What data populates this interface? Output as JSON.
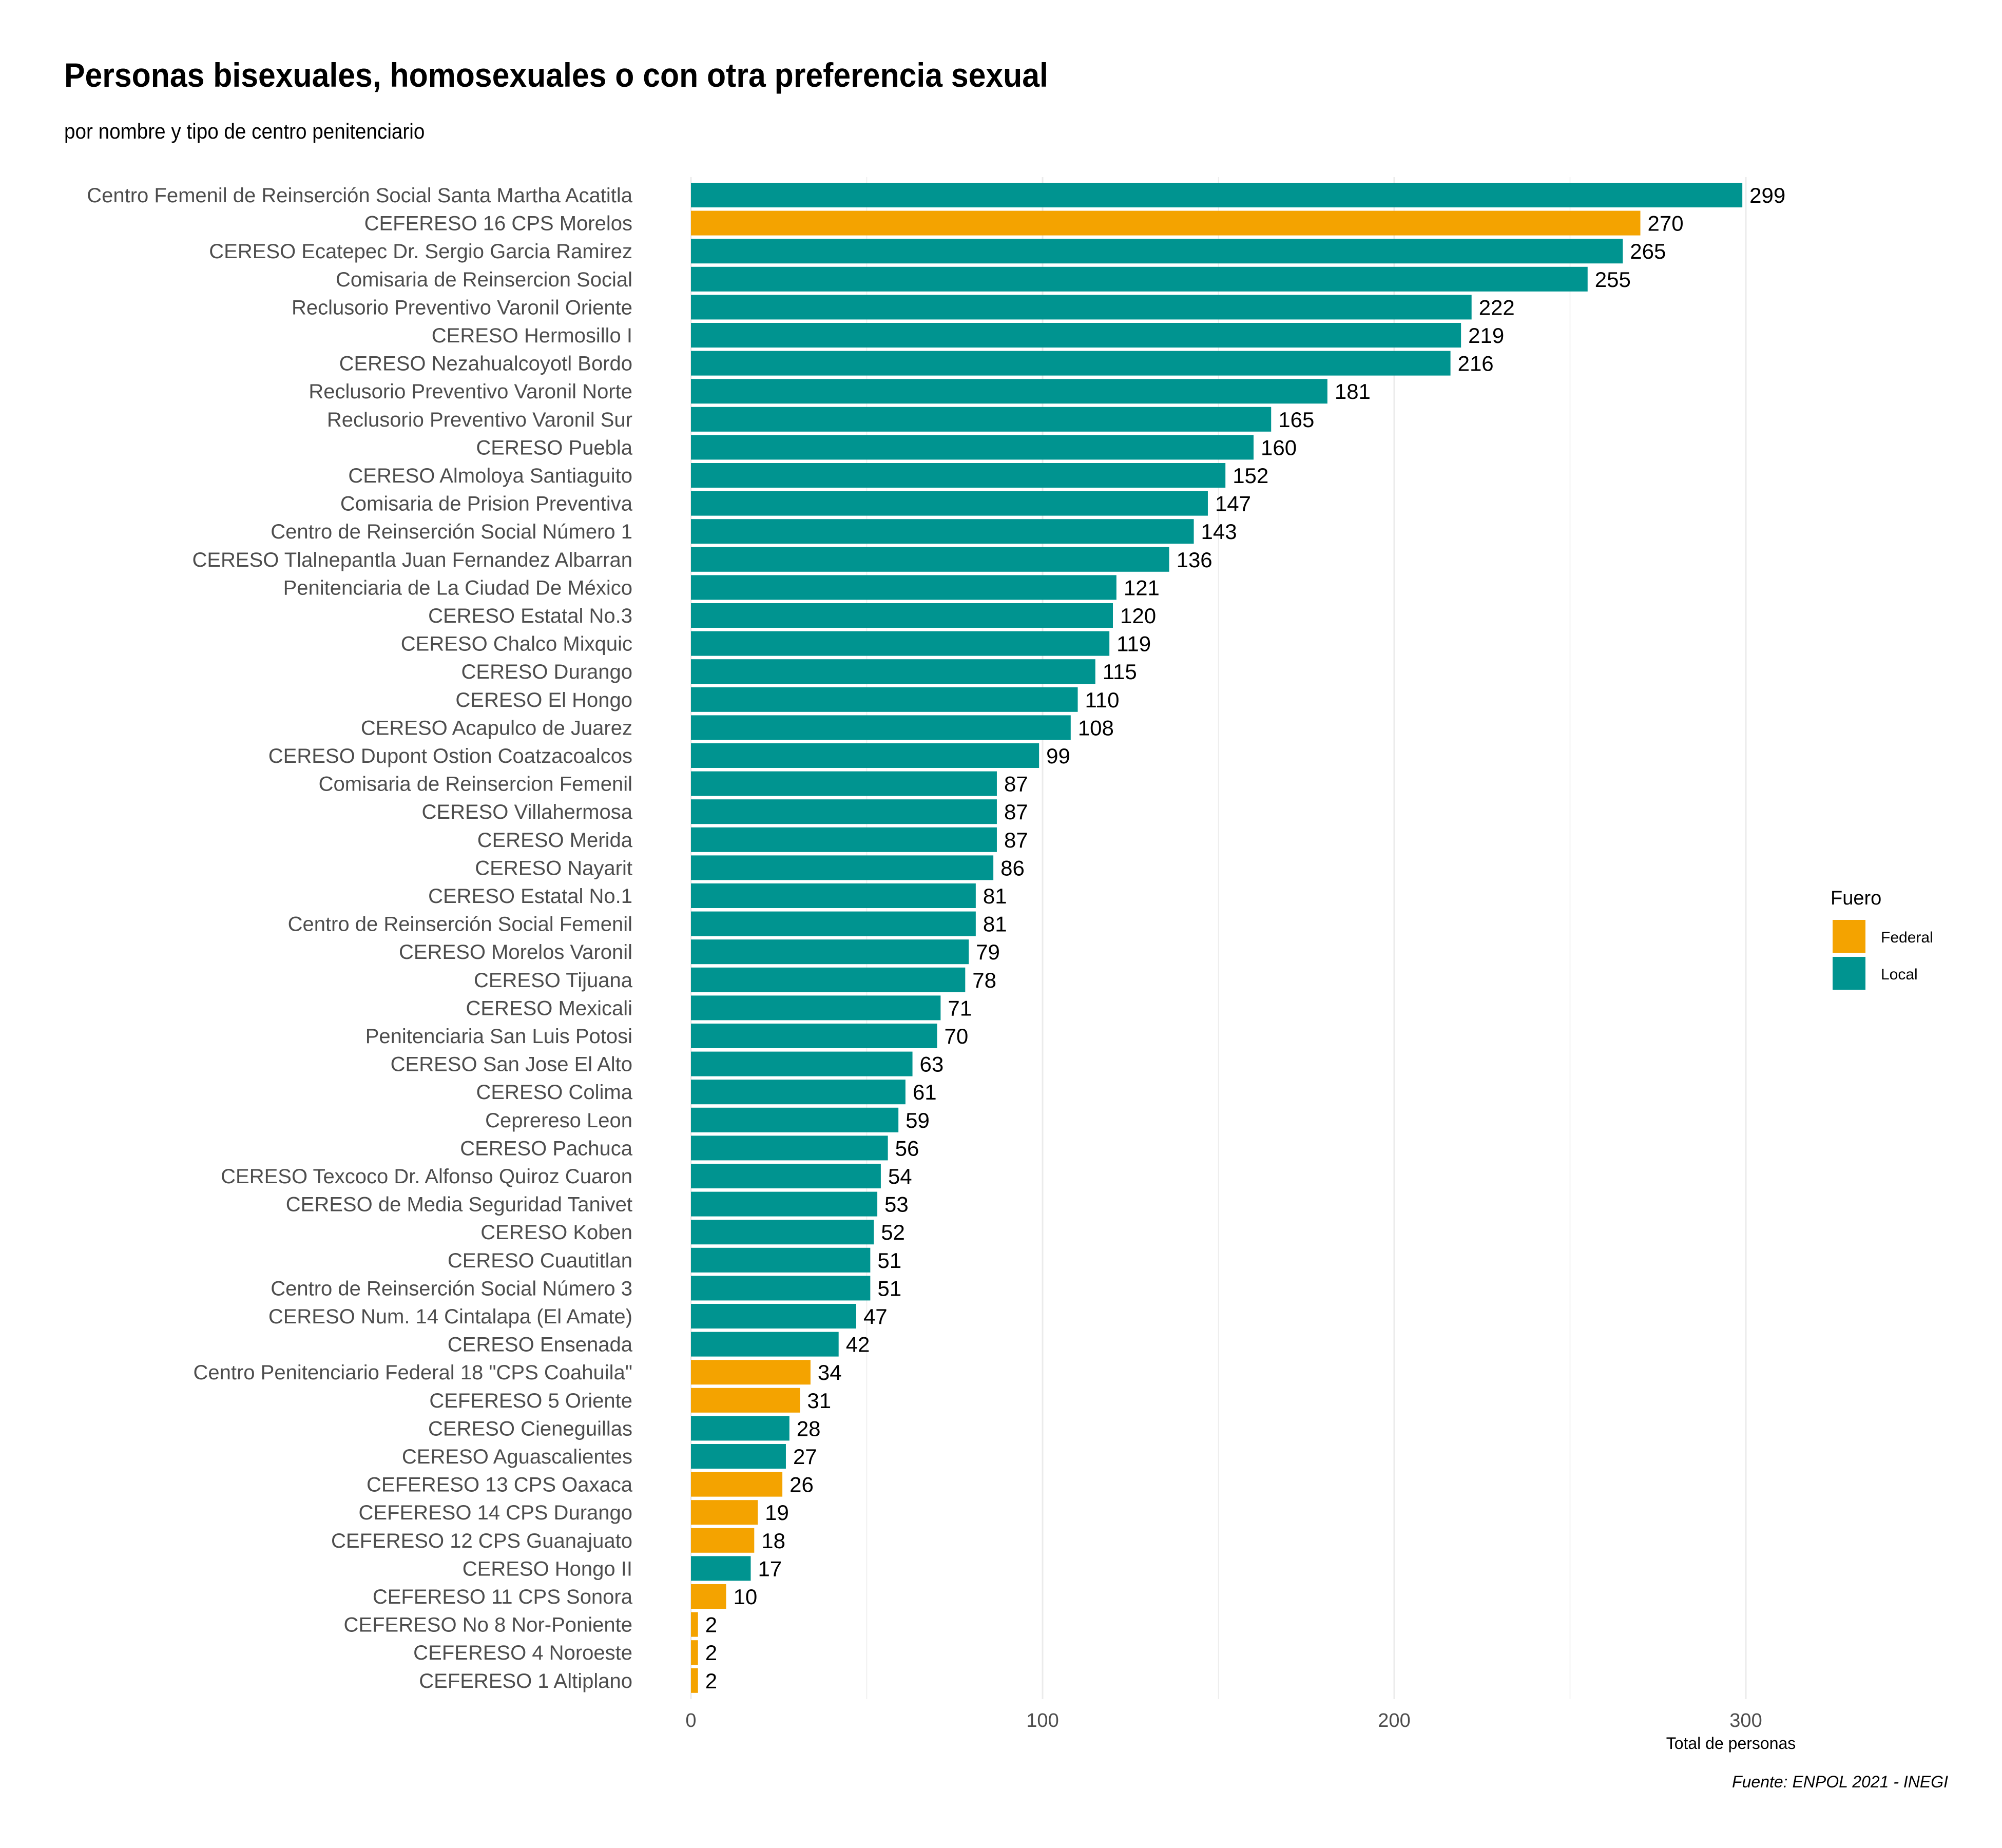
{
  "colors": {
    "Federal": "#F4A300",
    "Local": "#009490",
    "grid": "#ebebeb"
  },
  "chart_data": {
    "type": "bar",
    "orientation": "horizontal",
    "title": "Personas bisexuales, homosexuales o con otra preferencia sexual",
    "subtitle": "por nombre y tipo de centro penitenciario",
    "xlabel": "Total de personas",
    "ylabel": "",
    "xlim": [
      0,
      330
    ],
    "xticks": [
      0,
      100,
      200,
      300
    ],
    "grid": true,
    "legend": {
      "title": "Fuero",
      "position": "right",
      "entries": [
        "Federal",
        "Local"
      ]
    },
    "caption": "Fuente: ENPOL 2021 - INEGI",
    "bars": [
      {
        "label": "Centro Femenil de Reinserción Social Santa Martha Acatitla",
        "value": 299,
        "fuero": "Local"
      },
      {
        "label": "CEFERESO 16 CPS Morelos",
        "value": 270,
        "fuero": "Federal"
      },
      {
        "label": "CERESO Ecatepec Dr. Sergio Garcia Ramirez",
        "value": 265,
        "fuero": "Local"
      },
      {
        "label": "Comisaria de Reinsercion Social",
        "value": 255,
        "fuero": "Local"
      },
      {
        "label": "Reclusorio Preventivo Varonil Oriente",
        "value": 222,
        "fuero": "Local"
      },
      {
        "label": "CERESO Hermosillo I",
        "value": 219,
        "fuero": "Local"
      },
      {
        "label": "CERESO Nezahualcoyotl Bordo",
        "value": 216,
        "fuero": "Local"
      },
      {
        "label": "Reclusorio Preventivo Varonil Norte",
        "value": 181,
        "fuero": "Local"
      },
      {
        "label": "Reclusorio Preventivo Varonil Sur",
        "value": 165,
        "fuero": "Local"
      },
      {
        "label": "CERESO Puebla",
        "value": 160,
        "fuero": "Local"
      },
      {
        "label": "CERESO Almoloya Santiaguito",
        "value": 152,
        "fuero": "Local"
      },
      {
        "label": "Comisaria de Prision Preventiva",
        "value": 147,
        "fuero": "Local"
      },
      {
        "label": "Centro de Reinserción Social Número 1",
        "value": 143,
        "fuero": "Local"
      },
      {
        "label": "CERESO Tlalnepantla Juan Fernandez Albarran",
        "value": 136,
        "fuero": "Local"
      },
      {
        "label": "Penitenciaria de La Ciudad De México",
        "value": 121,
        "fuero": "Local"
      },
      {
        "label": "CERESO Estatal No.3",
        "value": 120,
        "fuero": "Local"
      },
      {
        "label": "CERESO Chalco Mixquic",
        "value": 119,
        "fuero": "Local"
      },
      {
        "label": "CERESO Durango",
        "value": 115,
        "fuero": "Local"
      },
      {
        "label": "CERESO El Hongo",
        "value": 110,
        "fuero": "Local"
      },
      {
        "label": "CERESO Acapulco de Juarez",
        "value": 108,
        "fuero": "Local"
      },
      {
        "label": "CERESO Dupont Ostion Coatzacoalcos",
        "value": 99,
        "fuero": "Local"
      },
      {
        "label": "Comisaria de Reinsercion Femenil",
        "value": 87,
        "fuero": "Local"
      },
      {
        "label": "CERESO Villahermosa",
        "value": 87,
        "fuero": "Local"
      },
      {
        "label": "CERESO Merida",
        "value": 87,
        "fuero": "Local"
      },
      {
        "label": "CERESO Nayarit",
        "value": 86,
        "fuero": "Local"
      },
      {
        "label": "CERESO Estatal No.1",
        "value": 81,
        "fuero": "Local"
      },
      {
        "label": "Centro de Reinserción Social Femenil",
        "value": 81,
        "fuero": "Local"
      },
      {
        "label": "CERESO Morelos Varonil",
        "value": 79,
        "fuero": "Local"
      },
      {
        "label": "CERESO Tijuana",
        "value": 78,
        "fuero": "Local"
      },
      {
        "label": "CERESO Mexicali",
        "value": 71,
        "fuero": "Local"
      },
      {
        "label": "Penitenciaria San Luis Potosi",
        "value": 70,
        "fuero": "Local"
      },
      {
        "label": "CERESO San Jose El Alto",
        "value": 63,
        "fuero": "Local"
      },
      {
        "label": "CERESO Colima",
        "value": 61,
        "fuero": "Local"
      },
      {
        "label": "Ceprereso Leon",
        "value": 59,
        "fuero": "Local"
      },
      {
        "label": "CERESO Pachuca",
        "value": 56,
        "fuero": "Local"
      },
      {
        "label": "CERESO Texcoco Dr. Alfonso Quiroz Cuaron",
        "value": 54,
        "fuero": "Local"
      },
      {
        "label": "CERESO de Media Seguridad Tanivet",
        "value": 53,
        "fuero": "Local"
      },
      {
        "label": "CERESO Koben",
        "value": 52,
        "fuero": "Local"
      },
      {
        "label": "CERESO Cuautitlan",
        "value": 51,
        "fuero": "Local"
      },
      {
        "label": "Centro de Reinserción Social Número 3",
        "value": 51,
        "fuero": "Local"
      },
      {
        "label": "CERESO Num. 14 Cintalapa (El Amate)",
        "value": 47,
        "fuero": "Local"
      },
      {
        "label": "CERESO Ensenada",
        "value": 42,
        "fuero": "Local"
      },
      {
        "label": "Centro Penitenciario Federal 18 \"CPS Coahuila\"",
        "value": 34,
        "fuero": "Federal"
      },
      {
        "label": "CEFERESO 5 Oriente",
        "value": 31,
        "fuero": "Federal"
      },
      {
        "label": "CERESO Cieneguillas",
        "value": 28,
        "fuero": "Local"
      },
      {
        "label": "CERESO Aguascalientes",
        "value": 27,
        "fuero": "Local"
      },
      {
        "label": "CEFERESO 13 CPS Oaxaca",
        "value": 26,
        "fuero": "Federal"
      },
      {
        "label": "CEFERESO 14 CPS Durango",
        "value": 19,
        "fuero": "Federal"
      },
      {
        "label": "CEFERESO 12 CPS Guanajuato",
        "value": 18,
        "fuero": "Federal"
      },
      {
        "label": "CERESO Hongo II",
        "value": 17,
        "fuero": "Local"
      },
      {
        "label": "CEFERESO 11 CPS Sonora",
        "value": 10,
        "fuero": "Federal"
      },
      {
        "label": "CEFERESO No 8 Nor-Poniente",
        "value": 2,
        "fuero": "Federal"
      },
      {
        "label": "CEFERESO 4 Noroeste",
        "value": 2,
        "fuero": "Federal"
      },
      {
        "label": "CEFERESO 1 Altiplano",
        "value": 2,
        "fuero": "Federal"
      }
    ]
  }
}
